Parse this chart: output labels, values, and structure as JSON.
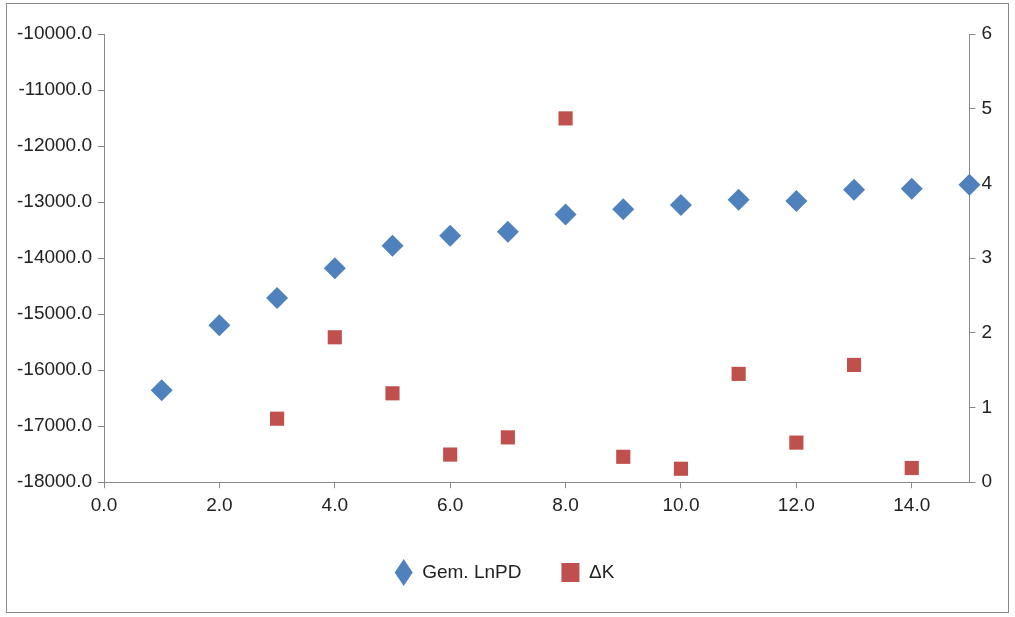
{
  "chart_data": {
    "type": "scatter",
    "legend": "bottom",
    "grid": false,
    "xlim": [
      0,
      15
    ],
    "xticks": [
      {
        "value": 0,
        "label": "0.0"
      },
      {
        "value": 2,
        "label": "2.0"
      },
      {
        "value": 4,
        "label": "4.0"
      },
      {
        "value": 6,
        "label": "6.0"
      },
      {
        "value": 8,
        "label": "8.0"
      },
      {
        "value": 10,
        "label": "10.0"
      },
      {
        "value": 12,
        "label": "12.0"
      },
      {
        "value": 14,
        "label": "14.0"
      }
    ],
    "ylim": [
      -18000,
      -10000
    ],
    "yticks": [
      {
        "value": -18000,
        "label": "-18000.0"
      },
      {
        "value": -17000,
        "label": "-17000.0"
      },
      {
        "value": -16000,
        "label": "-16000.0"
      },
      {
        "value": -15000,
        "label": "-15000.0"
      },
      {
        "value": -14000,
        "label": "-14000.0"
      },
      {
        "value": -13000,
        "label": "-13000.0"
      },
      {
        "value": -12000,
        "label": "-12000.0"
      },
      {
        "value": -11000,
        "label": "-11000.0"
      },
      {
        "value": -10000,
        "label": "-10000.0"
      }
    ],
    "y2lim": [
      0,
      6
    ],
    "y2ticks": [
      0,
      1,
      2,
      3,
      4,
      5,
      6
    ],
    "series": [
      {
        "name": "Gem. LnPD",
        "color": "#4f81bd",
        "marker": "diamond",
        "x": [
          1,
          2,
          3,
          4,
          5,
          6,
          7,
          8,
          9,
          10,
          11,
          12,
          13,
          14,
          15
        ],
        "values": [
          -16360,
          -15200,
          -14710,
          -14180,
          -13780,
          -13600,
          -13530,
          -13220,
          -13130,
          -13050,
          -12960,
          -12980,
          -12780,
          -12760,
          -12690
        ]
      },
      {
        "name": "ΔK",
        "color": "#c0504d",
        "marker": "square",
        "axis": "y2",
        "x": [
          3,
          4,
          5,
          6,
          7,
          8,
          9,
          10,
          11,
          12,
          13,
          14
        ],
        "values": [
          0.85,
          1.94,
          1.19,
          0.37,
          0.6,
          4.87,
          0.34,
          0.18,
          1.45,
          0.53,
          1.57,
          0.19
        ]
      }
    ]
  }
}
